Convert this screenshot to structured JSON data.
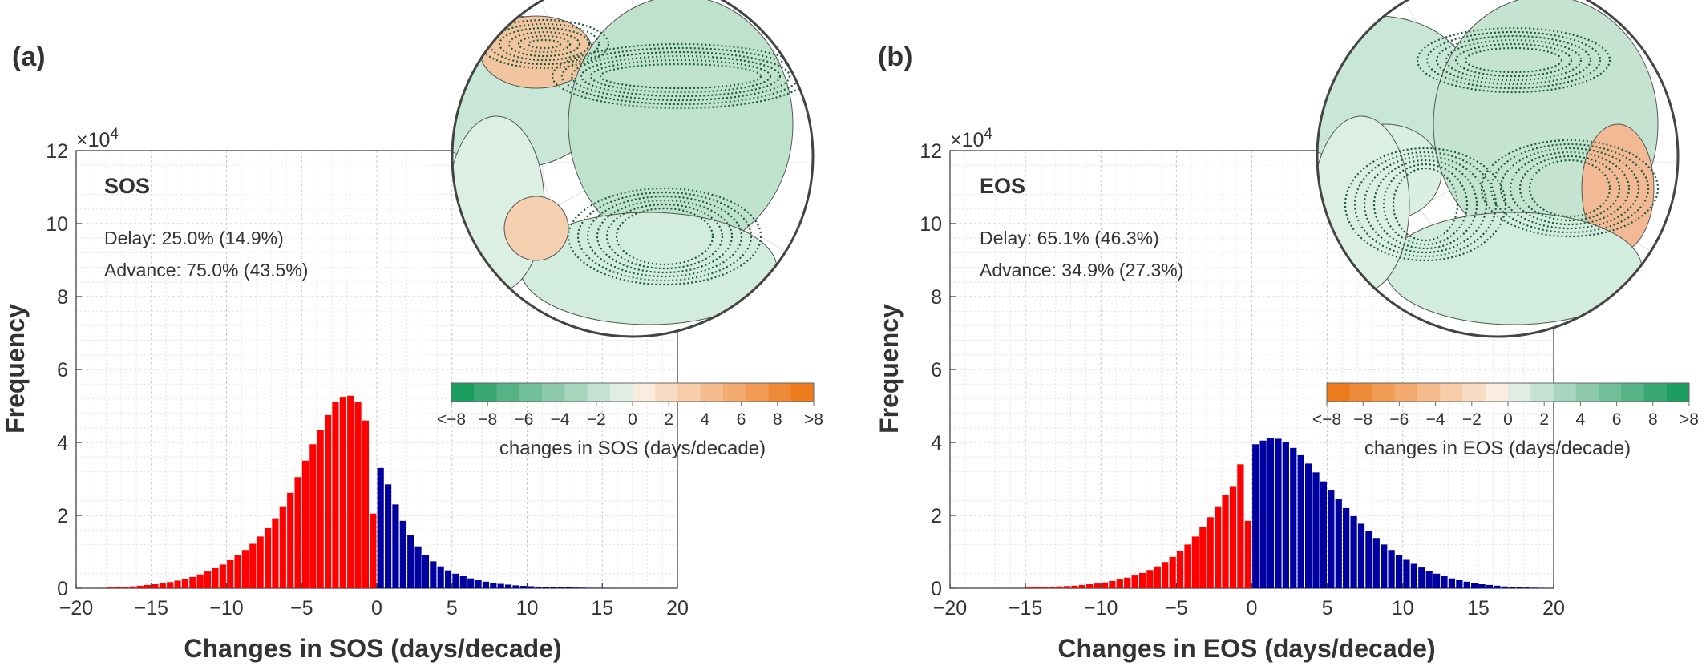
{
  "chart_data": [
    {
      "type": "bar",
      "panel_label": "(a)",
      "xlabel": "Changes in SOS (days/decade)",
      "ylabel": "Frequency",
      "y_exponent_label": "×10",
      "y_exponent_power": "4",
      "xlim": [
        -20,
        20
      ],
      "ylim": [
        0,
        12
      ],
      "xticks": [
        -20,
        -15,
        -10,
        -5,
        0,
        5,
        10,
        15,
        20
      ],
      "yticks": [
        0,
        2,
        4,
        6,
        8,
        10,
        12
      ],
      "grid": true,
      "annotation_title": "SOS",
      "delay_text": "Delay: 25.0% (14.9%)",
      "advance_text": "Advance: 75.0% (43.5%)",
      "delay_color": "#0000a0",
      "advance_color": "#ff0000",
      "bin_width": 0.5,
      "series": [
        {
          "name": "Advance",
          "color": "#ff0000",
          "x": [
            -17.75,
            -17.25,
            -16.75,
            -16.25,
            -15.75,
            -15.25,
            -14.75,
            -14.25,
            -13.75,
            -13.25,
            -12.75,
            -12.25,
            -11.75,
            -11.25,
            -10.75,
            -10.25,
            -9.75,
            -9.25,
            -8.75,
            -8.25,
            -7.75,
            -7.25,
            -6.75,
            -6.25,
            -5.75,
            -5.25,
            -4.75,
            -4.25,
            -3.75,
            -3.25,
            -2.75,
            -2.25,
            -1.75,
            -1.25,
            -0.75,
            -0.25
          ],
          "values": [
            0.02,
            0.03,
            0.04,
            0.05,
            0.07,
            0.09,
            0.11,
            0.14,
            0.17,
            0.21,
            0.26,
            0.31,
            0.38,
            0.46,
            0.55,
            0.65,
            0.77,
            0.9,
            1.05,
            1.22,
            1.42,
            1.65,
            1.92,
            2.25,
            2.62,
            3.05,
            3.5,
            3.95,
            4.35,
            4.75,
            5.1,
            5.25,
            5.28,
            5.1,
            4.6,
            2.05
          ]
        },
        {
          "name": "Delay",
          "color": "#0000a0",
          "x": [
            0.25,
            0.75,
            1.25,
            1.75,
            2.25,
            2.75,
            3.25,
            3.75,
            4.25,
            4.75,
            5.25,
            5.75,
            6.25,
            6.75,
            7.25,
            7.75,
            8.25,
            8.75,
            9.25,
            9.75,
            10.25,
            10.75,
            11.25,
            11.75,
            12.25,
            12.75,
            13.25,
            13.75,
            14.25,
            14.75,
            15.25,
            15.75,
            16.25,
            16.75,
            17.25,
            17.75,
            18.25
          ],
          "values": [
            3.3,
            2.85,
            2.3,
            1.85,
            1.45,
            1.15,
            0.92,
            0.74,
            0.6,
            0.49,
            0.4,
            0.33,
            0.27,
            0.22,
            0.18,
            0.15,
            0.12,
            0.1,
            0.08,
            0.065,
            0.055,
            0.045,
            0.038,
            0.032,
            0.027,
            0.022,
            0.018,
            0.015,
            0.012,
            0.01,
            0.008,
            0.007,
            0.006,
            0.005,
            0.004,
            0.003,
            0.003
          ]
        }
      ],
      "inset_map": {
        "colorbar_colors": [
          "#1b9e5f",
          "#3aa872",
          "#55b385",
          "#70bf98",
          "#8ccaab",
          "#a8d5be",
          "#c4e1d1",
          "#e0ede5",
          "#fbece0",
          "#f9dcc4",
          "#f7cca8",
          "#f5bb8c",
          "#f3ab70",
          "#f19b54",
          "#ef8b38",
          "#ed7b1c"
        ],
        "colorbar_ticks": [
          "<−8",
          "−8",
          "−6",
          "−4",
          "−2",
          "0",
          "2",
          "4",
          "6",
          "8",
          ">8"
        ],
        "colorbar_label": "changes in SOS (days/decade)"
      }
    },
    {
      "type": "bar",
      "panel_label": "(b)",
      "xlabel": "Changes in EOS (days/decade)",
      "ylabel": "Frequency",
      "y_exponent_label": "×10",
      "y_exponent_power": "4",
      "xlim": [
        -20,
        20
      ],
      "ylim": [
        0,
        12
      ],
      "xticks": [
        -20,
        -15,
        -10,
        -5,
        0,
        5,
        10,
        15,
        20
      ],
      "yticks": [
        0,
        2,
        4,
        6,
        8,
        10,
        12
      ],
      "grid": true,
      "annotation_title": "EOS",
      "delay_text": "Delay: 65.1% (46.3%)",
      "advance_text": "Advance: 34.9% (27.3%)",
      "delay_color": "#0000a0",
      "advance_color": "#ff0000",
      "bin_width": 0.5,
      "series": [
        {
          "name": "Advance",
          "color": "#ff0000",
          "x": [
            -14.75,
            -14.25,
            -13.75,
            -13.25,
            -12.75,
            -12.25,
            -11.75,
            -11.25,
            -10.75,
            -10.25,
            -9.75,
            -9.25,
            -8.75,
            -8.25,
            -7.75,
            -7.25,
            -6.75,
            -6.25,
            -5.75,
            -5.25,
            -4.75,
            -4.25,
            -3.75,
            -3.25,
            -2.75,
            -2.25,
            -1.75,
            -1.25,
            -0.75,
            -0.25
          ],
          "values": [
            0.02,
            0.025,
            0.03,
            0.04,
            0.05,
            0.06,
            0.07,
            0.09,
            0.11,
            0.13,
            0.16,
            0.2,
            0.24,
            0.29,
            0.35,
            0.42,
            0.5,
            0.6,
            0.72,
            0.86,
            1.02,
            1.2,
            1.42,
            1.67,
            1.95,
            2.25,
            2.55,
            2.78,
            3.4,
            1.85
          ]
        },
        {
          "name": "Delay",
          "color": "#0000a0",
          "x": [
            0.25,
            0.75,
            1.25,
            1.75,
            2.25,
            2.75,
            3.25,
            3.75,
            4.25,
            4.75,
            5.25,
            5.75,
            6.25,
            6.75,
            7.25,
            7.75,
            8.25,
            8.75,
            9.25,
            9.75,
            10.25,
            10.75,
            11.25,
            11.75,
            12.25,
            12.75,
            13.25,
            13.75,
            14.25,
            14.75,
            15.25,
            15.75,
            16.25,
            16.75,
            17.25,
            17.75,
            18.25,
            18.75,
            19.25
          ],
          "values": [
            3.95,
            4.05,
            4.12,
            4.1,
            4.0,
            3.85,
            3.65,
            3.42,
            3.18,
            2.93,
            2.68,
            2.44,
            2.2,
            1.98,
            1.77,
            1.57,
            1.38,
            1.2,
            1.05,
            0.91,
            0.78,
            0.67,
            0.57,
            0.48,
            0.4,
            0.33,
            0.27,
            0.22,
            0.18,
            0.14,
            0.11,
            0.09,
            0.07,
            0.05,
            0.04,
            0.03,
            0.02,
            0.015,
            0.01
          ]
        }
      ],
      "inset_map": {
        "colorbar_colors": [
          "#ed7b1c",
          "#ef8b38",
          "#f19b54",
          "#f3ab70",
          "#f5bb8c",
          "#f7cca8",
          "#f9dcc4",
          "#fbece0",
          "#e0ede5",
          "#c4e1d1",
          "#a8d5be",
          "#8ccaab",
          "#70bf98",
          "#55b385",
          "#3aa872",
          "#1b9e5f"
        ],
        "colorbar_ticks": [
          "<−8",
          "−8",
          "−6",
          "−4",
          "−2",
          "0",
          "2",
          "4",
          "6",
          "8",
          ">8"
        ],
        "colorbar_label": "changes in EOS (days/decade)"
      }
    }
  ]
}
